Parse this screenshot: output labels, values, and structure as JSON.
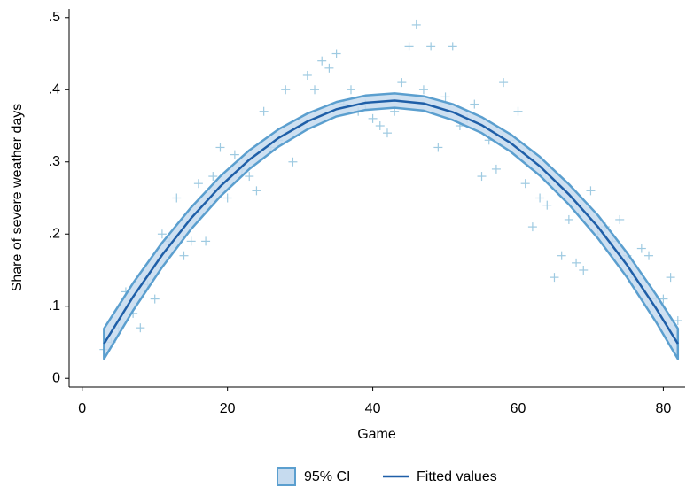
{
  "chart_data": {
    "type": "scatter",
    "x_label": "Game",
    "y_label": "Share of severe weather days",
    "xlim": [
      -1.8,
      83
    ],
    "ylim": [
      -0.012,
      0.512
    ],
    "xticks": [
      0,
      20,
      40,
      60,
      80
    ],
    "yticks": [
      0,
      {
        "value": 0.1,
        "label": ".1"
      },
      {
        "value": 0.2,
        "label": ".2"
      },
      {
        "value": 0.3,
        "label": ".3"
      },
      {
        "value": 0.4,
        "label": ".4"
      },
      {
        "value": 0.5,
        "label": ".5"
      }
    ],
    "points": {
      "color": "#9ecae1",
      "x": [
        3,
        4,
        5,
        6,
        7,
        8,
        9,
        10,
        11,
        12,
        13,
        14,
        15,
        16,
        17,
        18,
        19,
        20,
        21,
        22,
        23,
        24,
        25,
        26,
        27,
        28,
        29,
        30,
        31,
        32,
        33,
        34,
        35,
        36,
        37,
        38,
        39,
        40,
        41,
        42,
        43,
        44,
        45,
        46,
        47,
        48,
        49,
        50,
        51,
        52,
        53,
        54,
        55,
        56,
        57,
        58,
        59,
        60,
        61,
        62,
        63,
        64,
        65,
        66,
        67,
        68,
        69,
        70,
        71,
        72,
        73,
        74,
        75,
        76,
        77,
        78,
        79,
        80,
        81,
        82
      ],
      "y": [
        0.04,
        0.05,
        0.07,
        0.12,
        0.09,
        0.07,
        0.13,
        0.11,
        0.2,
        0.19,
        0.25,
        0.17,
        0.19,
        0.27,
        0.19,
        0.28,
        0.32,
        0.25,
        0.31,
        0.29,
        0.28,
        0.26,
        0.37,
        0.32,
        0.33,
        0.4,
        0.3,
        0.35,
        0.42,
        0.4,
        0.44,
        0.43,
        0.45,
        0.38,
        0.4,
        0.37,
        0.38,
        0.36,
        0.35,
        0.34,
        0.37,
        0.41,
        0.46,
        0.49,
        0.4,
        0.46,
        0.32,
        0.39,
        0.46,
        0.35,
        0.36,
        0.38,
        0.28,
        0.33,
        0.29,
        0.41,
        0.33,
        0.37,
        0.27,
        0.21,
        0.25,
        0.24,
        0.14,
        0.17,
        0.22,
        0.16,
        0.15,
        0.26,
        0.2,
        0.21,
        0.19,
        0.22,
        0.17,
        0.14,
        0.18,
        0.17,
        0.11,
        0.11,
        0.14,
        0.08
      ]
    },
    "fit": {
      "name": "Fitted values",
      "color": "#1f5fa8",
      "x": [
        3,
        7,
        11,
        15,
        19,
        23,
        27,
        31,
        35,
        39,
        43,
        47,
        51,
        55,
        59,
        63,
        67,
        71,
        75,
        79,
        82
      ],
      "y": [
        0.048,
        0.113,
        0.171,
        0.222,
        0.266,
        0.303,
        0.333,
        0.356,
        0.373,
        0.382,
        0.385,
        0.381,
        0.369,
        0.351,
        0.326,
        0.294,
        0.255,
        0.21,
        0.157,
        0.097,
        0.048
      ]
    },
    "ci": {
      "name": "95% CI",
      "color": "#c6dbef",
      "edge_color": "#5b9fcf",
      "lower": [
        0.027,
        0.094,
        0.154,
        0.207,
        0.252,
        0.29,
        0.321,
        0.345,
        0.363,
        0.372,
        0.375,
        0.371,
        0.358,
        0.34,
        0.314,
        0.281,
        0.241,
        0.194,
        0.14,
        0.078,
        0.027
      ],
      "upper": [
        0.069,
        0.132,
        0.188,
        0.237,
        0.28,
        0.316,
        0.345,
        0.367,
        0.383,
        0.392,
        0.395,
        0.391,
        0.38,
        0.362,
        0.338,
        0.307,
        0.269,
        0.226,
        0.174,
        0.116,
        0.069
      ]
    }
  }
}
